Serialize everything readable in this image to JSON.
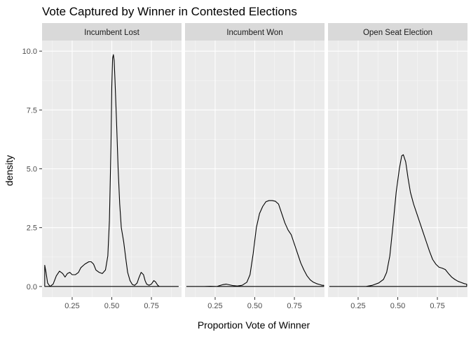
{
  "chart_data": {
    "type": "density",
    "title": "Vote Captured by Winner in Contested Elections",
    "xlabel": "Proportion Vote of Winner",
    "ylabel": "density",
    "xlim": [
      0.06,
      0.94
    ],
    "ylim": [
      -0.45,
      10.45
    ],
    "x_ticks": [
      0.25,
      0.5,
      0.75
    ],
    "x_tick_labels": [
      "0.25",
      "0.50",
      "0.75"
    ],
    "y_ticks": [
      0,
      2.5,
      5,
      7.5,
      10
    ],
    "y_tick_labels": [
      "0.0",
      "2.5",
      "5.0",
      "7.5",
      "10.0"
    ],
    "grid": true,
    "line_color": "#000000",
    "panel_bg": "#ebebeb",
    "strip_bg": "#d9d9d9",
    "grid_major": "#ffffff",
    "facets": [
      {
        "label": "Incumbent Lost",
        "points": [
          [
            0.077,
            0.9
          ],
          [
            0.085,
            0.6
          ],
          [
            0.095,
            0.15
          ],
          [
            0.11,
            0.0
          ],
          [
            0.13,
            0.1
          ],
          [
            0.15,
            0.45
          ],
          [
            0.17,
            0.65
          ],
          [
            0.19,
            0.55
          ],
          [
            0.205,
            0.4
          ],
          [
            0.22,
            0.55
          ],
          [
            0.235,
            0.6
          ],
          [
            0.25,
            0.5
          ],
          [
            0.27,
            0.5
          ],
          [
            0.29,
            0.6
          ],
          [
            0.305,
            0.8
          ],
          [
            0.33,
            0.95
          ],
          [
            0.355,
            1.05
          ],
          [
            0.37,
            1.05
          ],
          [
            0.385,
            0.95
          ],
          [
            0.4,
            0.7
          ],
          [
            0.42,
            0.6
          ],
          [
            0.44,
            0.55
          ],
          [
            0.46,
            0.7
          ],
          [
            0.475,
            1.3
          ],
          [
            0.485,
            2.8
          ],
          [
            0.495,
            6.0
          ],
          [
            0.5,
            8.5
          ],
          [
            0.505,
            9.7
          ],
          [
            0.51,
            9.85
          ],
          [
            0.515,
            9.6
          ],
          [
            0.52,
            8.8
          ],
          [
            0.53,
            7.0
          ],
          [
            0.54,
            5.0
          ],
          [
            0.55,
            3.5
          ],
          [
            0.56,
            2.5
          ],
          [
            0.575,
            1.9
          ],
          [
            0.59,
            1.1
          ],
          [
            0.6,
            0.6
          ],
          [
            0.615,
            0.25
          ],
          [
            0.63,
            0.08
          ],
          [
            0.645,
            0.05
          ],
          [
            0.66,
            0.15
          ],
          [
            0.67,
            0.35
          ],
          [
            0.685,
            0.6
          ],
          [
            0.7,
            0.5
          ],
          [
            0.71,
            0.25
          ],
          [
            0.72,
            0.1
          ],
          [
            0.735,
            0.05
          ],
          [
            0.75,
            0.1
          ],
          [
            0.765,
            0.25
          ],
          [
            0.775,
            0.2
          ],
          [
            0.79,
            0.05
          ],
          [
            0.8,
            0.0
          ],
          [
            0.82,
            0.0
          ],
          [
            0.92,
            0.0
          ]
        ]
      },
      {
        "label": "Incumbent Won",
        "points": [
          [
            0.07,
            0.0
          ],
          [
            0.18,
            0.0
          ],
          [
            0.22,
            0.01
          ],
          [
            0.26,
            0.0
          ],
          [
            0.28,
            0.04
          ],
          [
            0.3,
            0.08
          ],
          [
            0.32,
            0.1
          ],
          [
            0.34,
            0.07
          ],
          [
            0.36,
            0.04
          ],
          [
            0.39,
            0.02
          ],
          [
            0.42,
            0.05
          ],
          [
            0.45,
            0.18
          ],
          [
            0.47,
            0.5
          ],
          [
            0.49,
            1.4
          ],
          [
            0.51,
            2.5
          ],
          [
            0.53,
            3.1
          ],
          [
            0.55,
            3.4
          ],
          [
            0.57,
            3.6
          ],
          [
            0.59,
            3.65
          ],
          [
            0.61,
            3.65
          ],
          [
            0.63,
            3.62
          ],
          [
            0.65,
            3.5
          ],
          [
            0.67,
            3.1
          ],
          [
            0.69,
            2.7
          ],
          [
            0.71,
            2.4
          ],
          [
            0.73,
            2.2
          ],
          [
            0.75,
            1.8
          ],
          [
            0.77,
            1.4
          ],
          [
            0.79,
            1.0
          ],
          [
            0.81,
            0.7
          ],
          [
            0.83,
            0.45
          ],
          [
            0.85,
            0.28
          ],
          [
            0.87,
            0.18
          ],
          [
            0.89,
            0.12
          ],
          [
            0.91,
            0.08
          ],
          [
            0.925,
            0.05
          ],
          [
            0.935,
            0.05
          ]
        ]
      },
      {
        "label": "Open Seat Election",
        "points": [
          [
            0.07,
            0.0
          ],
          [
            0.3,
            0.0
          ],
          [
            0.34,
            0.05
          ],
          [
            0.38,
            0.15
          ],
          [
            0.41,
            0.3
          ],
          [
            0.43,
            0.6
          ],
          [
            0.45,
            1.3
          ],
          [
            0.47,
            2.6
          ],
          [
            0.49,
            4.0
          ],
          [
            0.51,
            5.0
          ],
          [
            0.525,
            5.55
          ],
          [
            0.535,
            5.6
          ],
          [
            0.55,
            5.3
          ],
          [
            0.565,
            4.6
          ],
          [
            0.58,
            4.0
          ],
          [
            0.6,
            3.5
          ],
          [
            0.62,
            3.1
          ],
          [
            0.64,
            2.7
          ],
          [
            0.66,
            2.3
          ],
          [
            0.68,
            1.9
          ],
          [
            0.7,
            1.5
          ],
          [
            0.72,
            1.15
          ],
          [
            0.74,
            0.95
          ],
          [
            0.76,
            0.82
          ],
          [
            0.78,
            0.78
          ],
          [
            0.8,
            0.72
          ],
          [
            0.82,
            0.55
          ],
          [
            0.84,
            0.4
          ],
          [
            0.86,
            0.3
          ],
          [
            0.88,
            0.22
          ],
          [
            0.9,
            0.17
          ],
          [
            0.92,
            0.12
          ],
          [
            0.935,
            0.1
          ]
        ]
      }
    ]
  }
}
